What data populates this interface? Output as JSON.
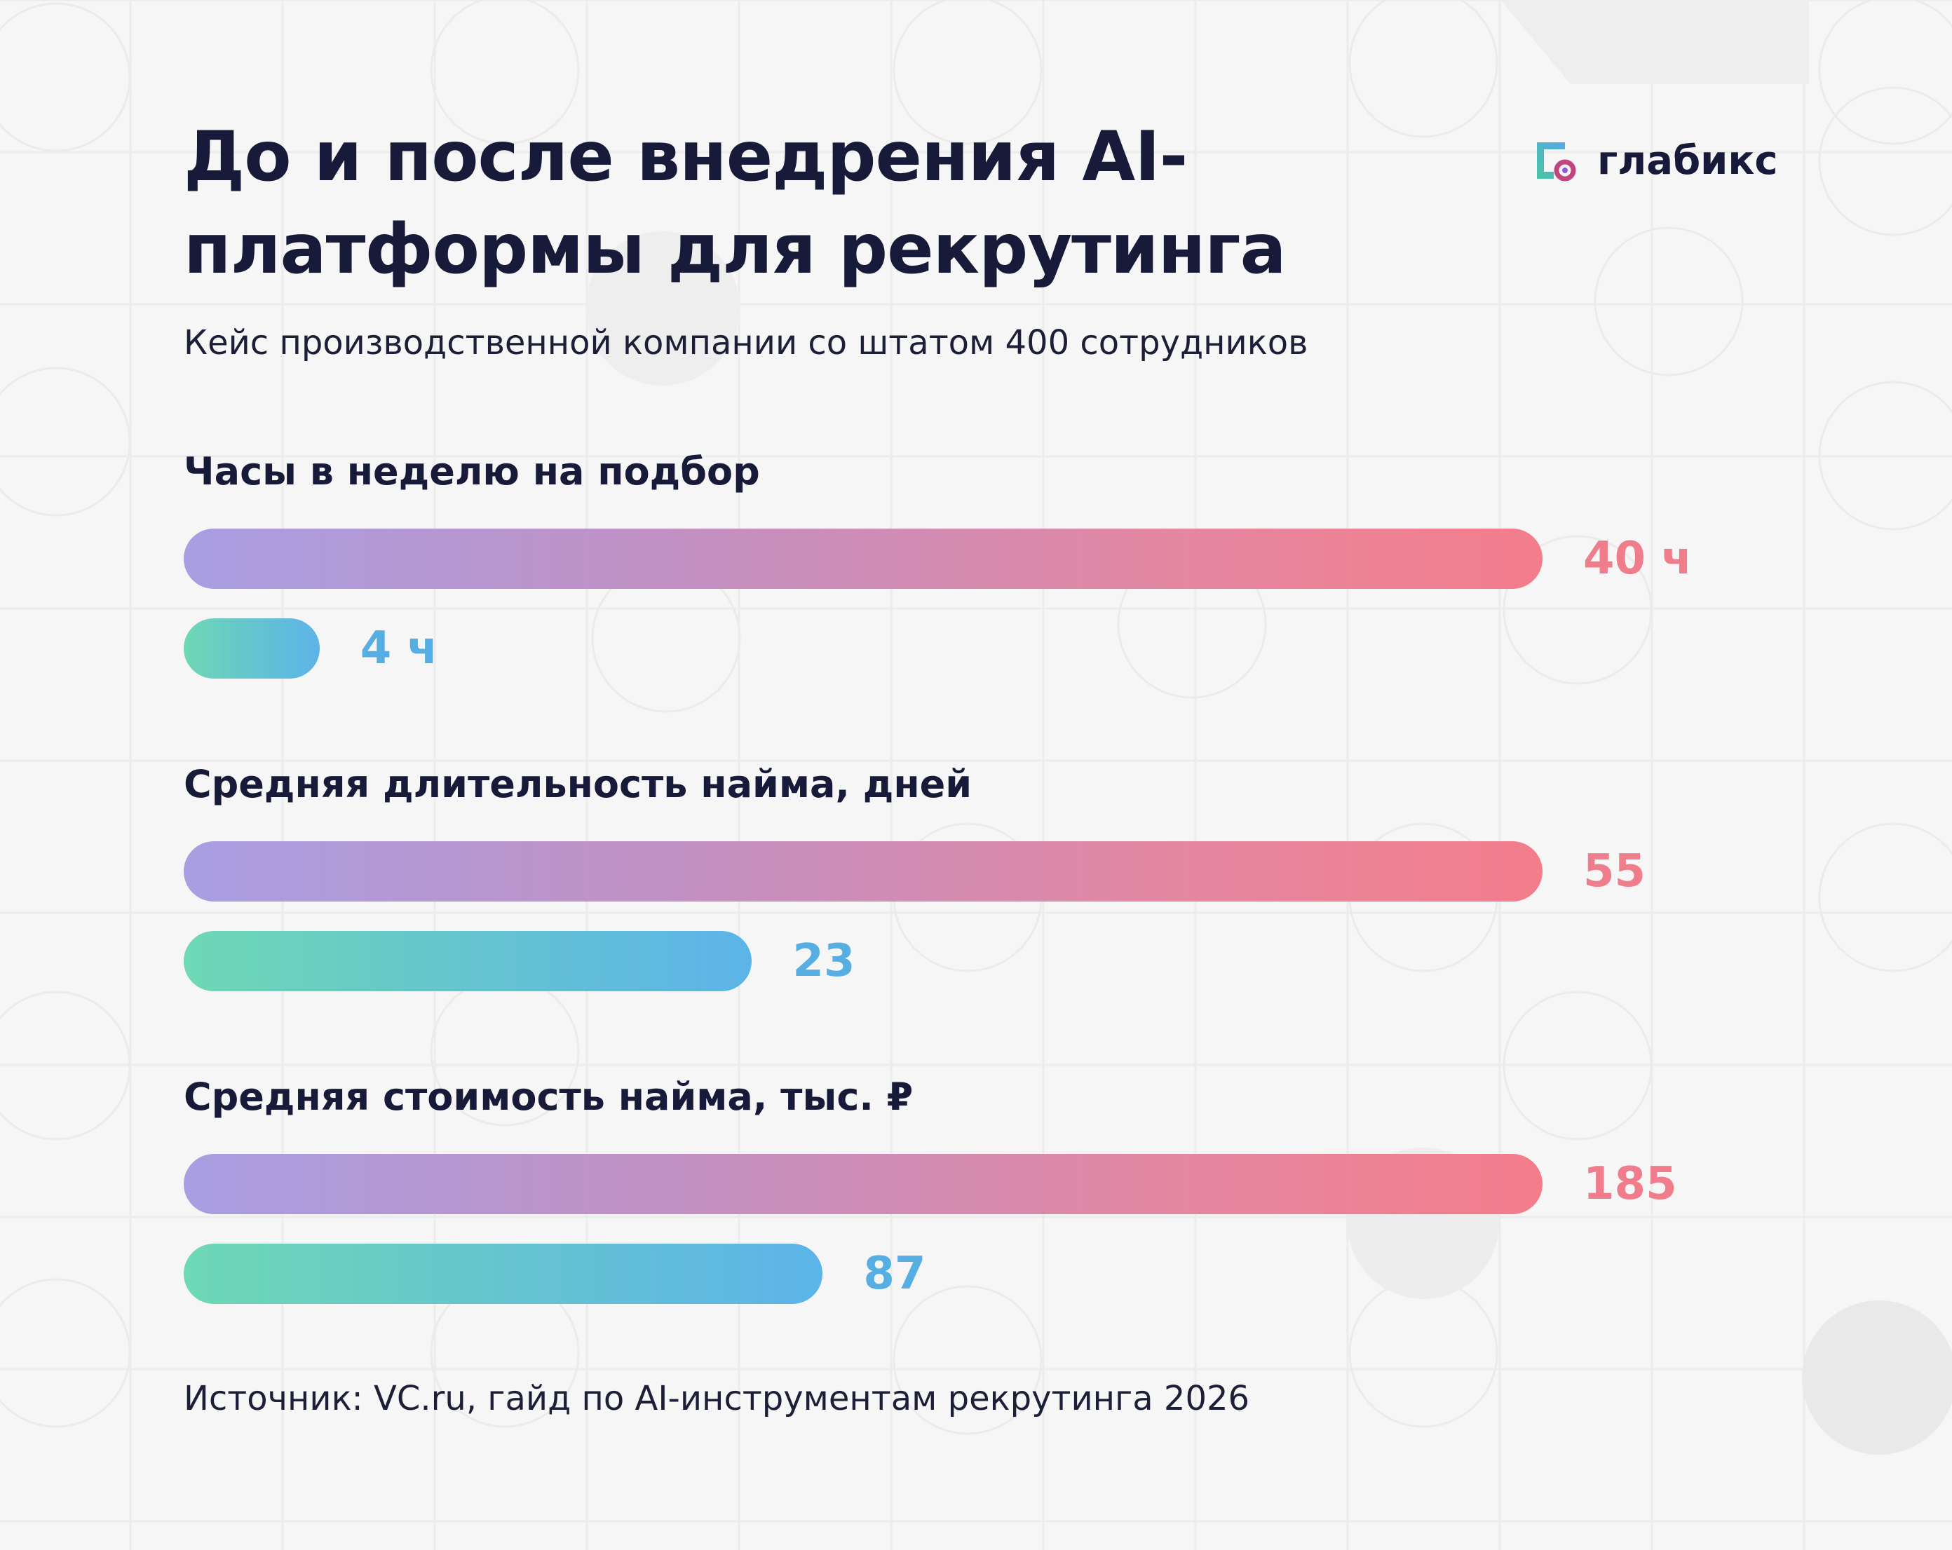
{
  "header": {
    "title": "До и после внедрения AI-платформы для рекрутинга",
    "subtitle": "Кейс производственной компании со штатом 400 сотрудников",
    "logo_text": "глабикс"
  },
  "footer": {
    "source": "Источник: VC.ru, гайд по AI-инструментам рекрутинга 2026"
  },
  "colors": {
    "before_start": "#a89ee2",
    "before_end": "#f37d8b",
    "after_start": "#6fd8b5",
    "after_end": "#5cb4e8",
    "before_label": "#ef7d8c",
    "after_label": "#57aee3",
    "text": "#171a38"
  },
  "chart_data": {
    "type": "bar",
    "orientation": "horizontal",
    "groups": [
      {
        "title": "Часы в неделю на подбор",
        "before": 40,
        "after": 4,
        "before_label": "40 ч",
        "after_label": "4 ч"
      },
      {
        "title": "Средняя длительность найма, дней",
        "before": 55,
        "after": 23,
        "before_label": "55",
        "after_label": "23"
      },
      {
        "title": "Средняя стоимость найма, тыс. ₽",
        "before": 185,
        "after": 87,
        "before_label": "185",
        "after_label": "87"
      }
    ]
  }
}
